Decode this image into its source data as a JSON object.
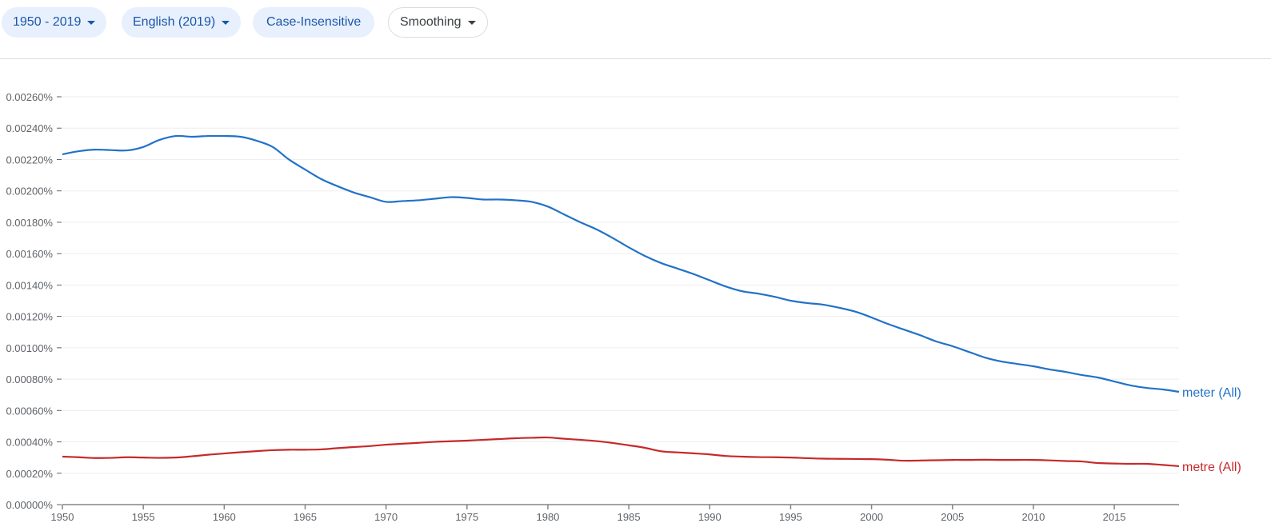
{
  "toolbar": {
    "year_range": "1950 - 2019",
    "corpus": "English (2019)",
    "case": "Case-Insensitive",
    "smoothing": "Smoothing"
  },
  "chart_data": {
    "type": "line",
    "x": [
      1950,
      1951,
      1952,
      1953,
      1954,
      1955,
      1956,
      1957,
      1958,
      1959,
      1960,
      1961,
      1962,
      1963,
      1964,
      1965,
      1966,
      1967,
      1968,
      1969,
      1970,
      1971,
      1972,
      1973,
      1974,
      1975,
      1976,
      1977,
      1978,
      1979,
      1980,
      1981,
      1982,
      1983,
      1984,
      1985,
      1986,
      1987,
      1988,
      1989,
      1990,
      1991,
      1992,
      1993,
      1994,
      1995,
      1996,
      1997,
      1998,
      1999,
      2000,
      2001,
      2002,
      2003,
      2004,
      2005,
      2006,
      2007,
      2008,
      2009,
      2010,
      2011,
      2012,
      2013,
      2014,
      2015,
      2016,
      2017,
      2018,
      2019
    ],
    "series": [
      {
        "name": "meter (All)",
        "color": "#2172c8",
        "values": [
          0.002233,
          0.002253,
          0.002263,
          0.00226,
          0.002258,
          0.00228,
          0.002325,
          0.00235,
          0.002345,
          0.00235,
          0.00235,
          0.002345,
          0.00232,
          0.00228,
          0.0022,
          0.002136,
          0.002075,
          0.00203,
          0.00199,
          0.00196,
          0.00193,
          0.001935,
          0.00194,
          0.00195,
          0.00196,
          0.001955,
          0.001945,
          0.001945,
          0.00194,
          0.00193,
          0.0019,
          0.00185,
          0.0018,
          0.001755,
          0.0017,
          0.00164,
          0.001585,
          0.00154,
          0.001505,
          0.00147,
          0.00143,
          0.00139,
          0.00136,
          0.001345,
          0.001325,
          0.0013,
          0.001285,
          0.001275,
          0.001255,
          0.00123,
          0.001193,
          0.001152,
          0.001116,
          0.00108,
          0.00104,
          0.00101,
          0.000974,
          0.000938,
          0.000913,
          0.000897,
          0.000882,
          0.000862,
          0.000846,
          0.000826,
          0.00081,
          0.000785,
          0.00076,
          0.000744,
          0.000734,
          0.000719
        ]
      },
      {
        "name": "metre (All)",
        "color": "#c62a2a",
        "values": [
          0.000306,
          0.000302,
          0.000297,
          0.000298,
          0.000302,
          0.0003,
          0.000298,
          0.0003,
          0.000308,
          0.000318,
          0.000326,
          0.000334,
          0.000341,
          0.000347,
          0.00035,
          0.00035,
          0.000352,
          0.00036,
          0.000367,
          0.000373,
          0.000382,
          0.000388,
          0.000394,
          0.0004,
          0.000404,
          0.000408,
          0.000413,
          0.000418,
          0.000423,
          0.000426,
          0.000428,
          0.00042,
          0.000413,
          0.000405,
          0.000393,
          0.000378,
          0.000362,
          0.00034,
          0.000333,
          0.000327,
          0.00032,
          0.00031,
          0.000306,
          0.000303,
          0.000302,
          0.0003,
          0.000296,
          0.000293,
          0.000292,
          0.000291,
          0.00029,
          0.000286,
          0.00028,
          0.000281,
          0.000283,
          0.000285,
          0.000285,
          0.000286,
          0.000285,
          0.000285,
          0.000285,
          0.000282,
          0.000278,
          0.000275,
          0.000265,
          0.000262,
          0.00026,
          0.00026,
          0.000253,
          0.000245
        ]
      }
    ],
    "xlim": [
      1950,
      2019
    ],
    "ylim": [
      0,
      0.0026
    ],
    "xticks": [
      1950,
      1955,
      1960,
      1965,
      1970,
      1975,
      1980,
      1985,
      1990,
      1995,
      2000,
      2005,
      2010,
      2015
    ],
    "yticks": [
      "0.00000%",
      "0.00020%",
      "0.00040%",
      "0.00060%",
      "0.00080%",
      "0.00100%",
      "0.00120%",
      "0.00140%",
      "0.00160%",
      "0.00180%",
      "0.00200%",
      "0.00220%",
      "0.00240%",
      "0.00260%"
    ],
    "grid": true,
    "legend": "inline-right"
  }
}
